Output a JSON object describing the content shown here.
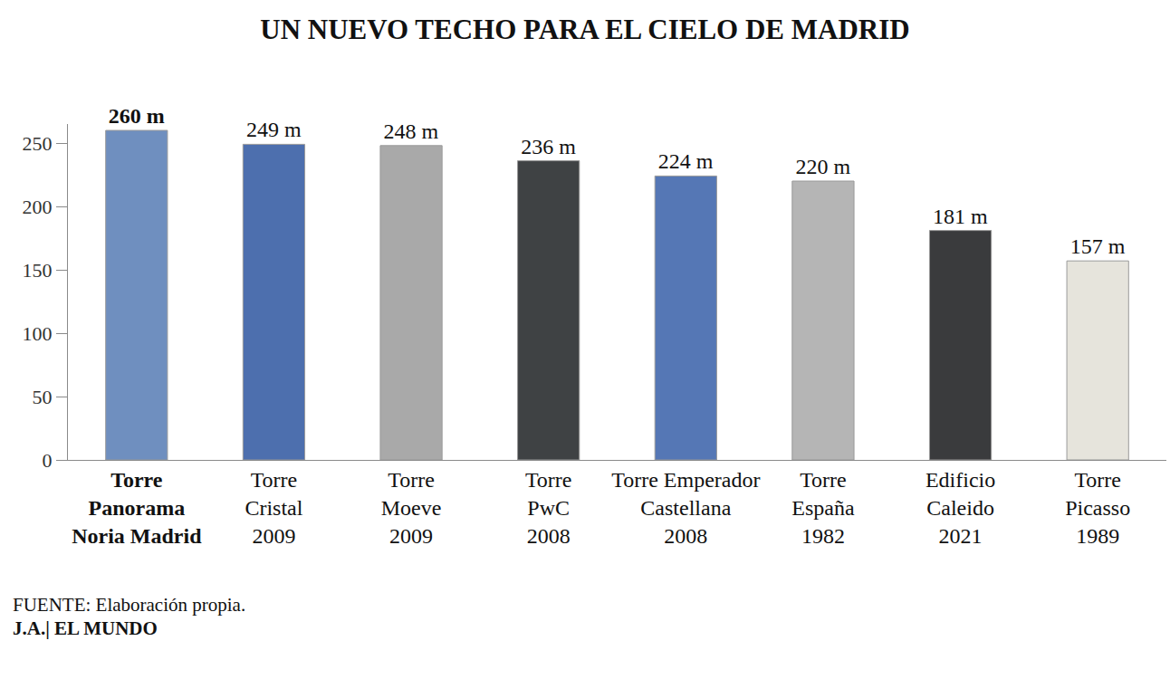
{
  "chart_data": {
    "type": "bar",
    "title": "UN NUEVO TECHO PARA EL CIELO DE MADRID",
    "categories": [
      "Torre\nPanorama\nNoria Madrid",
      "Torre\nCristal\n2009",
      "Torre\nMoeve\n2009",
      "Torre\nPwC\n2008",
      "Torre Emperador\nCastellana\n2008",
      "Torre\nEspaña\n1982",
      "Edificio\nCaleido\n2021",
      "Torre\nPicasso\n1989"
    ],
    "values": [
      260,
      249,
      248,
      236,
      224,
      220,
      181,
      157
    ],
    "value_labels": [
      "260 m",
      "249 m",
      "248 m",
      "236 m",
      "224 m",
      "220 m",
      "181 m",
      "157 m"
    ],
    "data_labels": true,
    "colors": [
      "#6f8fbf",
      "#4d6fae",
      "#a9a9a9",
      "#3f4244",
      "#5577b5",
      "#b5b5b5",
      "#3a3b3d",
      "#e6e4dc"
    ],
    "ylim": [
      0,
      265
    ],
    "yticks": [
      0,
      50,
      100,
      150,
      200,
      250
    ],
    "grid": false,
    "annotations": [
      "FUENTE: Elaboración propia.",
      "J.A.| EL MUNDO"
    ]
  }
}
